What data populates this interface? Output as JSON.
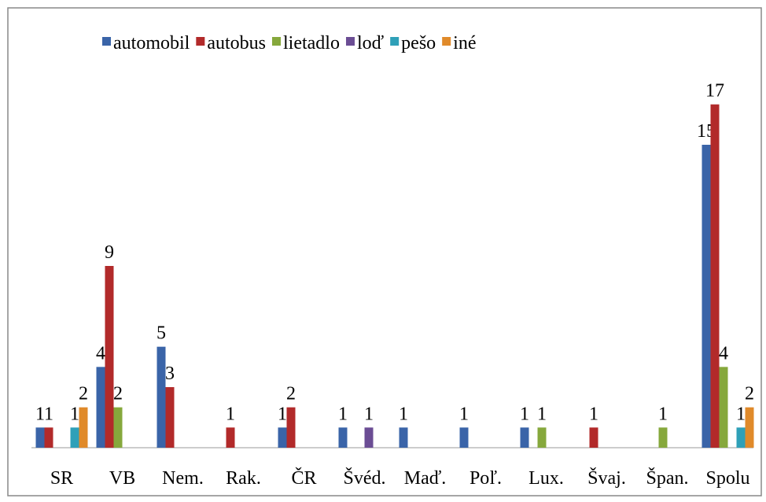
{
  "chart_data": {
    "type": "bar",
    "categories": [
      "SR",
      "VB",
      "Nem.",
      "Rak.",
      "ČR",
      "Švéd.",
      "Maď.",
      "Poľ.",
      "Lux.",
      "Švaj.",
      "Špan.",
      "Spolu"
    ],
    "series": [
      {
        "name": "automobil",
        "color": "#3a64a8",
        "values": [
          1,
          4,
          5,
          null,
          1,
          1,
          1,
          1,
          1,
          null,
          null,
          15
        ]
      },
      {
        "name": "autobus",
        "color": "#b22a2a",
        "values": [
          1,
          9,
          3,
          1,
          2,
          null,
          null,
          null,
          null,
          1,
          null,
          17
        ]
      },
      {
        "name": "lietadlo",
        "color": "#86a83c",
        "values": [
          null,
          2,
          null,
          null,
          null,
          null,
          null,
          null,
          1,
          null,
          1,
          4
        ]
      },
      {
        "name": "loď",
        "color": "#6b4d94",
        "values": [
          null,
          null,
          null,
          null,
          null,
          1,
          null,
          null,
          null,
          null,
          null,
          null
        ]
      },
      {
        "name": "pešo",
        "color": "#2fa0b8",
        "values": [
          1,
          null,
          null,
          null,
          null,
          null,
          null,
          null,
          null,
          null,
          null,
          1
        ]
      },
      {
        "name": "iné",
        "color": "#e08a2a",
        "values": [
          2,
          null,
          null,
          null,
          null,
          null,
          null,
          null,
          null,
          null,
          null,
          2
        ]
      }
    ],
    "ylim": [
      0,
      18
    ],
    "legend": "top"
  }
}
